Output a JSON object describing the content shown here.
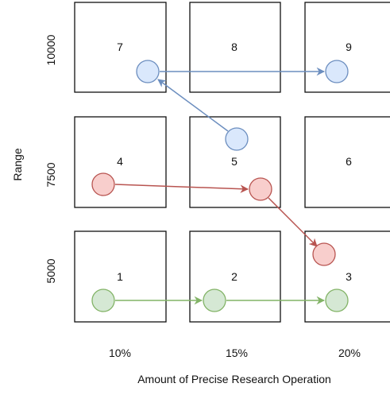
{
  "axes": {
    "x_label": "Amount of Precise Research Operation",
    "y_label": "Range",
    "x_ticks": [
      "10%",
      "15%",
      "20%"
    ],
    "y_ticks": [
      "10000",
      "7500",
      "5000"
    ]
  },
  "cells": [
    {
      "label": "7"
    },
    {
      "label": "8"
    },
    {
      "label": "9"
    },
    {
      "label": "4"
    },
    {
      "label": "5"
    },
    {
      "label": "6"
    },
    {
      "label": "1"
    },
    {
      "label": "2"
    },
    {
      "label": "3"
    }
  ],
  "paths": [
    {
      "color_name": "green",
      "stroke": "#82b366",
      "fill": "#d5e8d4",
      "from_cell": "1",
      "via_cell": "2",
      "to_cell": "3"
    },
    {
      "color_name": "red",
      "stroke": "#b85450",
      "fill": "#f8cecc",
      "from_cell": "4",
      "via_cell": "5",
      "to_cell": "3"
    },
    {
      "color_name": "blue",
      "stroke": "#6c8ebf",
      "fill": "#dae8fc",
      "from_cell": "5",
      "via_cell": "7",
      "to_cell": "9"
    }
  ]
}
